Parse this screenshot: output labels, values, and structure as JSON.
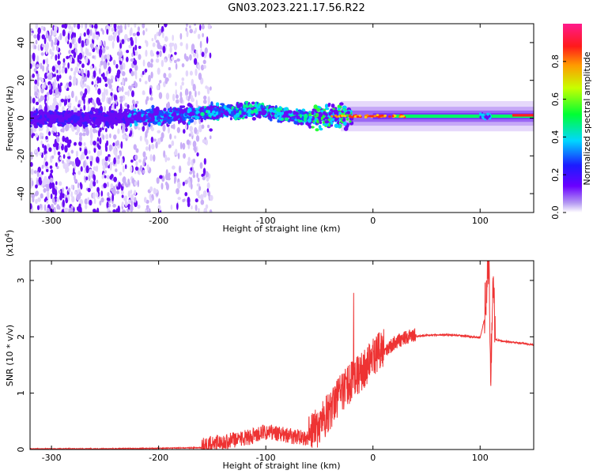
{
  "title": "GN03.2023.221.17.56.R22",
  "chart_data": [
    {
      "type": "heatmap",
      "xlabel": "Height of straight line (km)",
      "ylabel": "Frequency (Hz)",
      "xlim": [
        -320,
        150
      ],
      "ylim": [
        -50,
        50
      ],
      "xticks": [
        -300,
        -200,
        -100,
        0,
        100
      ],
      "yticks": [
        -40,
        -20,
        0,
        20,
        40
      ],
      "colorbar": {
        "label": "Normalized spectral amplitude",
        "range": [
          0.0,
          1.0
        ],
        "ticks": [
          0.0,
          0.2,
          0.4,
          0.6,
          0.8
        ],
        "colormap": "rainbow (purple-blue-cyan-green-yellow-red-magenta)"
      },
      "ridge": {
        "x": [
          -320,
          -250,
          -200,
          -150,
          -100,
          -60,
          -40,
          -20,
          0,
          50,
          100,
          105,
          110,
          150
        ],
        "frequency": [
          0,
          0,
          1,
          3,
          4,
          0,
          1,
          1,
          1,
          1,
          1,
          0,
          2,
          2
        ]
      }
    },
    {
      "type": "line",
      "ylabel": "SNR (10 * v/v)",
      "y_multiplier": "(x10",
      "y_multiplier_exp": "4",
      "xlabel": "Height of straight line (km)",
      "xlim": [
        -320,
        150
      ],
      "ylim": [
        0,
        3.35
      ],
      "xticks": [
        -300,
        -200,
        -100,
        0,
        100
      ],
      "yticks": [
        0,
        1,
        2,
        3
      ],
      "color": "#ee3333",
      "series": [
        {
          "x": [
            -320,
            -250,
            -200,
            -160,
            -150,
            -130,
            -110,
            -100,
            -80,
            -60,
            -50,
            -40,
            -30,
            -20,
            -10,
            0,
            10,
            20,
            30,
            40,
            50,
            60,
            70,
            80,
            90,
            100,
            104,
            106,
            108,
            110,
            112,
            114,
            120,
            130,
            140,
            150
          ],
          "values": [
            0.01,
            0.01,
            0.02,
            0.03,
            0.06,
            0.12,
            0.2,
            0.28,
            0.2,
            0.16,
            0.3,
            0.6,
            0.9,
            1.1,
            1.3,
            1.5,
            1.7,
            1.85,
            1.95,
            2.0,
            2.02,
            2.03,
            2.03,
            2.02,
            2.0,
            1.98,
            2.3,
            2.7,
            3.3,
            1.2,
            2.8,
            1.95,
            1.92,
            1.9,
            1.88,
            1.85
          ]
        }
      ],
      "spikes": {
        "x": [
          -18,
          108
        ],
        "values": [
          2.78,
          3.35
        ]
      }
    }
  ]
}
